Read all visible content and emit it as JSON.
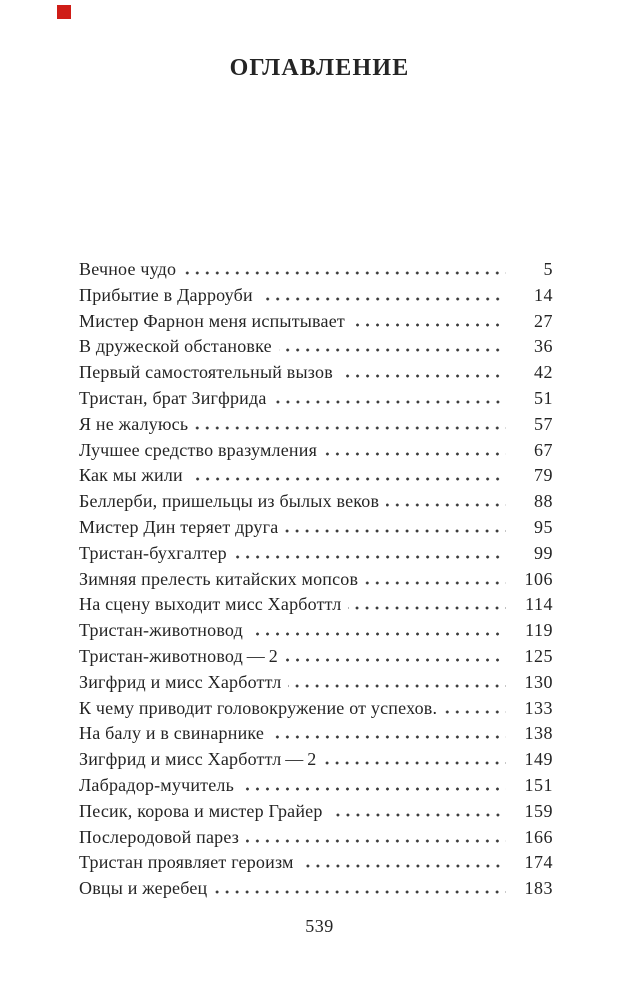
{
  "page": {
    "title": "ОГЛАВЛЕНИЕ",
    "footer_page_number": "539"
  },
  "colors": {
    "text": "#242424",
    "background": "#ffffff",
    "marker_red": "#cf1d17",
    "dot_leader": "#3a3a3a"
  },
  "toc": {
    "entries": [
      {
        "title": "Вечное чудо",
        "page": "5"
      },
      {
        "title": "Прибытие в Дарроуби",
        "page": "14"
      },
      {
        "title": "Мистер Фарнон меня испытывает",
        "page": "27"
      },
      {
        "title": "В дружеской обстановке",
        "page": "36"
      },
      {
        "title": "Первый самостоятельный вызов",
        "page": "42"
      },
      {
        "title": "Тристан, брат Зигфрида",
        "page": "51"
      },
      {
        "title": "Я не жалуюсь",
        "page": "57"
      },
      {
        "title": "Лучшее средство вразумления",
        "page": "67"
      },
      {
        "title": "Как мы жили",
        "page": "79"
      },
      {
        "title": "Беллерби, пришельцы из былых веков",
        "page": "88"
      },
      {
        "title": "Мистер Дин теряет друга",
        "page": "95"
      },
      {
        "title": "Тристан-бухгалтер",
        "page": "99"
      },
      {
        "title": "Зимняя прелесть китайских мопсов",
        "page": "106"
      },
      {
        "title": "На сцену выходит мисс Харботтл",
        "page": "114"
      },
      {
        "title": "Тристан-животновод",
        "page": "119"
      },
      {
        "title": "Тристан-животновод — 2",
        "page": "125"
      },
      {
        "title": "Зигфрид и мисс Харботтл",
        "page": "130"
      },
      {
        "title": "К чему приводит головокружение от успехов.",
        "page": "133"
      },
      {
        "title": "На балу и в свинарнике",
        "page": "138"
      },
      {
        "title": "Зигфрид и мисс Харботтл — 2",
        "page": "149"
      },
      {
        "title": "Лабрадор-мучитель",
        "page": "151"
      },
      {
        "title": "Песик, корова и мистер Грайер",
        "page": "159"
      },
      {
        "title": "Послеродовой парез",
        "page": "166"
      },
      {
        "title": "Тристан проявляет героизм",
        "page": "174"
      },
      {
        "title": "Овцы и жеребец",
        "page": "183"
      }
    ]
  }
}
